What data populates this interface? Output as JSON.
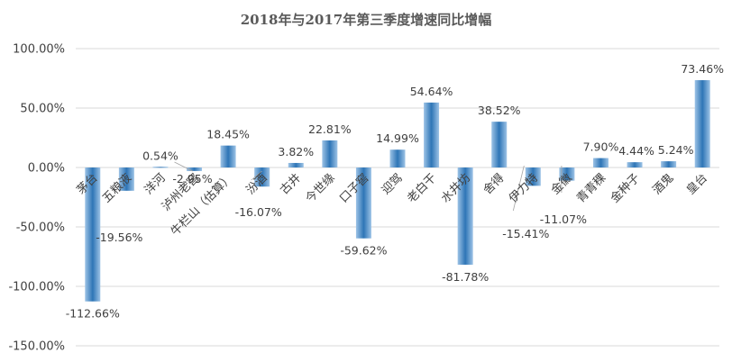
{
  "chart_data": {
    "type": "bar",
    "title": "2018年与2017年第三季度增速同比增幅",
    "xlabel": "",
    "ylabel": "",
    "ylim": [
      -150,
      100
    ],
    "y_ticks": [
      "100.00%",
      "50.00%",
      "0.00%",
      "-50.00%",
      "-100.00%",
      "-150.00%"
    ],
    "grid": true,
    "legend": "none",
    "colors": {
      "bar_light": "#9dc3e6",
      "bar_dark": "#2e75b6",
      "grid": "#d9d9d9",
      "text": "#404040",
      "title": "#595959"
    },
    "categories": [
      "茅台",
      "五粮液",
      "洋河",
      "泸州老窖",
      "牛栏山（估算）",
      "汾酒",
      "古井",
      "今世缘",
      "口子窖",
      "迎驾",
      "老白干",
      "水井坊",
      "舍得",
      "伊力特",
      "金徽",
      "青青稞",
      "金种子",
      "酒鬼",
      "皇台"
    ],
    "values": [
      -112.66,
      -19.56,
      0.54,
      -2.95,
      18.45,
      -16.07,
      3.82,
      22.81,
      -59.62,
      14.99,
      54.64,
      -81.78,
      38.52,
      -15.41,
      -11.07,
      7.9,
      4.44,
      5.24,
      73.46
    ],
    "data_labels": [
      "-112.66%",
      "-19.56%",
      "0.54%",
      "-2.95%",
      "18.45%",
      "-16.07%",
      "3.82%",
      "22.81%",
      "-59.62%",
      "14.99%",
      "54.64%",
      "-81.78%",
      "38.52%",
      "-15.41%",
      "-11.07%",
      "7.90%",
      "4.44%",
      "5.24%",
      "73.46%"
    ]
  }
}
